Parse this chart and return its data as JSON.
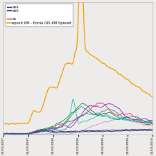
{
  "legend_entries": [
    "ank",
    "ank",
    "",
    "se",
    "eposit 6M - Eonia OIS 6M Spread"
  ],
  "x_ticks": [
    "02/01/2007",
    "02/07/2007",
    "02/01/2008",
    "02/07/2008",
    "02/01/2009",
    "02/07/2009",
    "02/01/2010"
  ],
  "background_color": "#eeecea",
  "grid_color": "#d8d8d8",
  "line_colors": {
    "orange": "#f0a000",
    "navy": "#000080",
    "darknavy": "#000040",
    "darkgreen": "#007040",
    "green2": "#009050",
    "cyan": "#00b8b8",
    "red": "#cc2020",
    "purple": "#8800cc",
    "lightpurple": "#bb88cc",
    "magenta": "#cc00aa",
    "teal": "#008888"
  },
  "ylim": [
    0,
    1.0
  ],
  "figsize": [
    2.25,
    2.25
  ],
  "dpi": 100
}
